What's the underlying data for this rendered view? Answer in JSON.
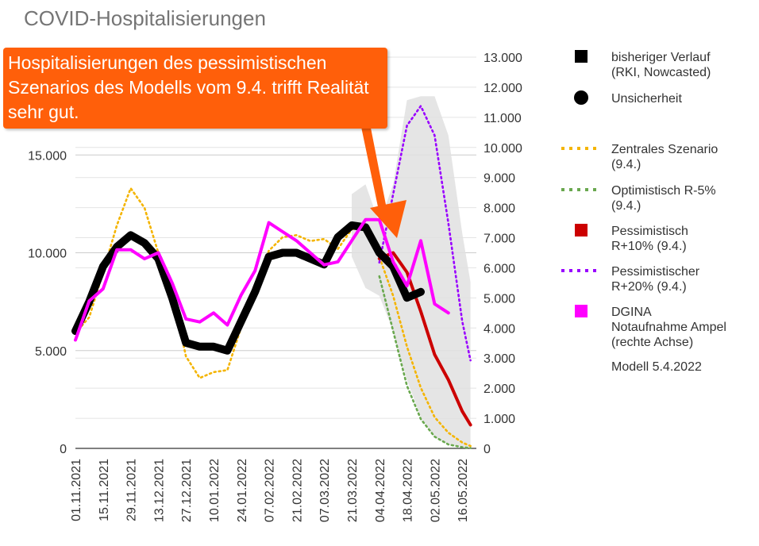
{
  "chart_data": {
    "type": "line",
    "title": "COVID-Hospitalisierungen",
    "annotation": "Hospitalisierungen des pessimistischen Szenarios des Modells vom 9.4. trifft Realität sehr gut.",
    "x_labels": [
      "01.11.2021",
      "15.11.2021",
      "29.11.2021",
      "13.12.2021",
      "27.12.2021",
      "10.01.2022",
      "24.01.2022",
      "07.02.2022",
      "21.02.2022",
      "07.03.2022",
      "21.03.2022",
      "04.04.2022",
      "18.04.2022",
      "02.05.2022",
      "16.05.2022"
    ],
    "x_range": [
      0,
      14.3
    ],
    "left_axis": {
      "ticks": [
        "0",
        "5.000",
        "10.000",
        "15.000"
      ],
      "tick_values": [
        0,
        5000,
        10000,
        15000
      ],
      "range": [
        0,
        20000
      ]
    },
    "right_axis": {
      "ticks": [
        "0",
        "1.000",
        "2.000",
        "3.000",
        "4.000",
        "5.000",
        "6.000",
        "7.000",
        "8.000",
        "9.000",
        "10.000",
        "11.000",
        "12.000",
        "13.000"
      ],
      "tick_values": [
        0,
        1000,
        2000,
        3000,
        4000,
        5000,
        6000,
        7000,
        8000,
        9000,
        10000,
        11000,
        12000,
        13000
      ],
      "range": [
        0,
        13000
      ]
    },
    "series": [
      {
        "name": "Unsicherheit",
        "type": "band",
        "color": "#e0e0e0",
        "axis": "left",
        "x": [
          10,
          10.5,
          11,
          11.5,
          12,
          12.5,
          13,
          13.5,
          14,
          14.3
        ],
        "lower": [
          9800,
          8200,
          7800,
          6000,
          3500,
          1600,
          600,
          200,
          80,
          50
        ],
        "upper": [
          13000,
          13500,
          11500,
          13500,
          17800,
          18000,
          18000,
          16000,
          11000,
          8500
        ]
      },
      {
        "name": "Zentrales Szenario (9.4.)",
        "type": "dotted",
        "color": "#f4b400",
        "axis": "left",
        "x": [
          0,
          0.5,
          1,
          1.5,
          2,
          2.5,
          3,
          3.5,
          4,
          4.5,
          5,
          5.5,
          6,
          6.5,
          7,
          7.5,
          8,
          8.5,
          9,
          9.5,
          10,
          10.5,
          11,
          11.5,
          12,
          12.5,
          13,
          13.5,
          14,
          14.3
        ],
        "values": [
          5900,
          6700,
          9000,
          11400,
          13300,
          12300,
          10000,
          8000,
          4700,
          3600,
          3900,
          4000,
          6200,
          8000,
          10100,
          10800,
          10900,
          10600,
          10700,
          10200,
          11200,
          11300,
          9800,
          7800,
          5200,
          3100,
          1600,
          800,
          300,
          120
        ]
      },
      {
        "name": "Optimistisch R-5% (9.4.)",
        "type": "dotted",
        "color": "#6aa84f",
        "axis": "left",
        "x": [
          11,
          11.5,
          12,
          12.5,
          13,
          13.5,
          14,
          14.3
        ],
        "values": [
          8800,
          6000,
          3200,
          1500,
          600,
          200,
          60,
          20
        ]
      },
      {
        "name": "Pessimistischer R+20% (9.4.)",
        "type": "dotted",
        "color": "#9900ff",
        "axis": "left",
        "x": [
          11,
          11.5,
          12,
          12.5,
          13,
          13.5,
          14,
          14.3
        ],
        "values": [
          9500,
          13000,
          16500,
          17500,
          16000,
          11500,
          6500,
          4500
        ]
      },
      {
        "name": "Pessimistisch R+10% (9.4.)",
        "type": "line",
        "color": "#cc0000",
        "axis": "left",
        "x": [
          11,
          11.5,
          12,
          12.5,
          13,
          13.5,
          14,
          14.3
        ],
        "values": [
          9700,
          10000,
          9000,
          7000,
          4800,
          3500,
          1900,
          1200
        ]
      },
      {
        "name": "bisheriger Verlauf (RKI, Nowcasted)",
        "type": "thick",
        "color": "#000000",
        "axis": "left",
        "x": [
          0,
          0.5,
          1,
          1.5,
          2,
          2.5,
          3,
          3.5,
          4,
          4.5,
          5,
          5.5,
          6,
          6.5,
          7,
          7.5,
          8,
          8.5,
          9,
          9.5,
          10,
          10.5,
          11,
          11.5,
          12,
          12.5
        ],
        "values": [
          6000,
          7500,
          9300,
          10300,
          10900,
          10500,
          9700,
          7700,
          5400,
          5200,
          5200,
          5000,
          6500,
          8000,
          9800,
          10000,
          10000,
          9700,
          9400,
          10800,
          11400,
          11300,
          10000,
          9300,
          7700,
          8000
        ]
      },
      {
        "name": "DGINA Notaufnahme Ampel (rechte Achse)",
        "type": "line",
        "color": "#ff00ff",
        "axis": "right",
        "x": [
          0,
          0.5,
          1,
          1.5,
          2,
          2.5,
          3,
          3.5,
          4,
          4.5,
          5,
          5.5,
          6,
          6.5,
          7,
          7.5,
          8,
          8.5,
          9,
          9.5,
          10,
          10.5,
          11,
          11.5,
          12,
          12.5,
          13,
          13.5
        ],
        "values": [
          3600,
          4900,
          5300,
          6600,
          6600,
          6300,
          6500,
          5500,
          4300,
          4200,
          4500,
          4100,
          5100,
          5900,
          7500,
          7200,
          6900,
          6500,
          6100,
          6200,
          6900,
          7600,
          7600,
          6200,
          5400,
          6900,
          4800,
          4500
        ]
      }
    ],
    "legend": [
      {
        "label1": "bisheriger Verlauf",
        "label2": "(RKI, Nowcasted)",
        "label3": "",
        "marker": "square",
        "color": "#000000"
      },
      {
        "label1": "Unsicherheit",
        "label2": "",
        "label3": "",
        "marker": "circle",
        "color": "#000000"
      },
      {
        "label1": "Zentrales Szenario",
        "label2": "(9.4.)",
        "label3": "",
        "marker": "dotted",
        "color": "#f4b400"
      },
      {
        "label1": "Optimistisch R-5%",
        "label2": "(9.4.)",
        "label3": "",
        "marker": "dotted",
        "color": "#6aa84f"
      },
      {
        "label1": "Pessimistisch",
        "label2": "R+10% (9.4.)",
        "label3": "",
        "marker": "square",
        "color": "#cc0000"
      },
      {
        "label1": "Pessimistischer",
        "label2": "R+20% (9.4.)",
        "label3": "",
        "marker": "dotted",
        "color": "#9900ff"
      },
      {
        "label1": "DGINA",
        "label2": "Notaufnahme Ampel",
        "label3": "(rechte Achse)",
        "marker": "square",
        "color": "#ff00ff"
      },
      {
        "label1": "Modell 5.4.2022",
        "label2": "",
        "label3": "",
        "marker": "none",
        "color": "#333333"
      }
    ],
    "arrow_color": "#ff5f0a",
    "grid": true,
    "legend_position": "right"
  }
}
